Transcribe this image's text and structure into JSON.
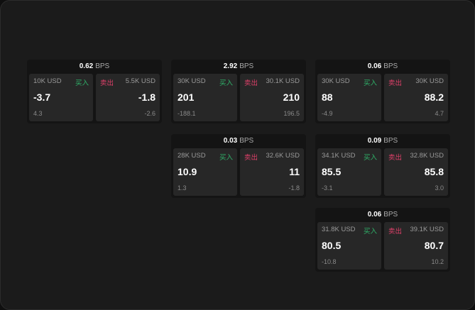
{
  "buy_label": "买入",
  "sell_label": "卖出",
  "unit": "BPS",
  "colors": {
    "buy": "#2fb36a",
    "sell": "#e0406a"
  },
  "widgets": [
    {
      "spread": "0.62",
      "bid": {
        "size": "10K USD",
        "price": "-3.7",
        "change": "4.3"
      },
      "ask": {
        "size": "5.5K USD",
        "price": "-1.8",
        "change": "-2.6"
      }
    },
    {
      "spread": "2.92",
      "bid": {
        "size": "30K USD",
        "price": "201",
        "change": "-188.1"
      },
      "ask": {
        "size": "30.1K USD",
        "price": "210",
        "change": "196.5"
      }
    },
    {
      "spread": "0.06",
      "bid": {
        "size": "30K USD",
        "price": "88",
        "change": "-4.9"
      },
      "ask": {
        "size": "30K USD",
        "price": "88.2",
        "change": "4.7"
      }
    },
    {
      "spread": "0.03",
      "bid": {
        "size": "28K USD",
        "price": "10.9",
        "change": "1.3"
      },
      "ask": {
        "size": "32.6K USD",
        "price": "11",
        "change": "-1.8"
      }
    },
    {
      "spread": "0.09",
      "bid": {
        "size": "34.1K USD",
        "price": "85.5",
        "change": "-3.1"
      },
      "ask": {
        "size": "32.8K USD",
        "price": "85.8",
        "change": "3.0"
      }
    },
    {
      "spread": "0.06",
      "bid": {
        "size": "31.8K USD",
        "price": "80.5",
        "change": "-10.8"
      },
      "ask": {
        "size": "39.1K USD",
        "price": "80.7",
        "change": "10.2"
      }
    }
  ]
}
